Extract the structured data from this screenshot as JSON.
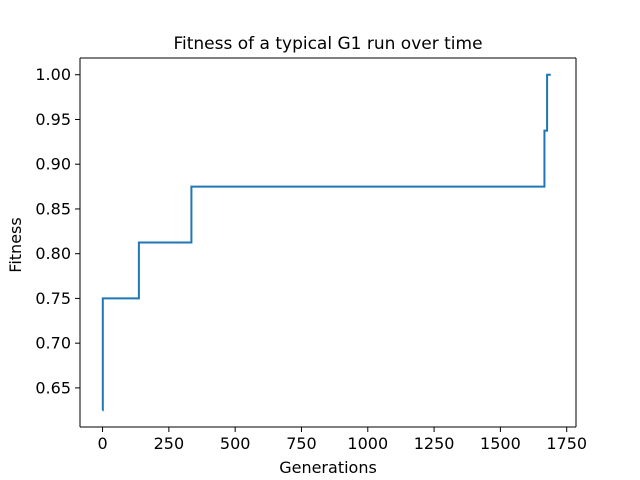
{
  "chart_data": {
    "type": "line",
    "title": "Fitness of a typical G1 run over time",
    "xlabel": "Generations",
    "ylabel": "Fitness",
    "xlim": [
      -85,
      1785
    ],
    "ylim": [
      0.6063,
      1.0187
    ],
    "xticks": [
      0,
      250,
      500,
      750,
      1000,
      1250,
      1500,
      1750
    ],
    "xtick_labels": [
      "0",
      "250",
      "500",
      "750",
      "1000",
      "1250",
      "1500",
      "1750"
    ],
    "yticks": [
      0.65,
      0.7,
      0.75,
      0.8,
      0.85,
      0.9,
      0.95,
      1.0
    ],
    "ytick_labels": [
      "0.65",
      "0.70",
      "0.75",
      "0.80",
      "0.85",
      "0.90",
      "0.95",
      "1.00"
    ],
    "grid": false,
    "color": "#1f77b4",
    "series": [
      {
        "step": true,
        "x": [
          0,
          1,
          135,
          137,
          334,
          335,
          1664,
          1666,
          1675,
          1676,
          1690
        ],
        "y": [
          0.625,
          0.75,
          0.75,
          0.8125,
          0.8125,
          0.875,
          0.875,
          0.9375,
          0.9375,
          1.0,
          1.0
        ]
      }
    ]
  }
}
